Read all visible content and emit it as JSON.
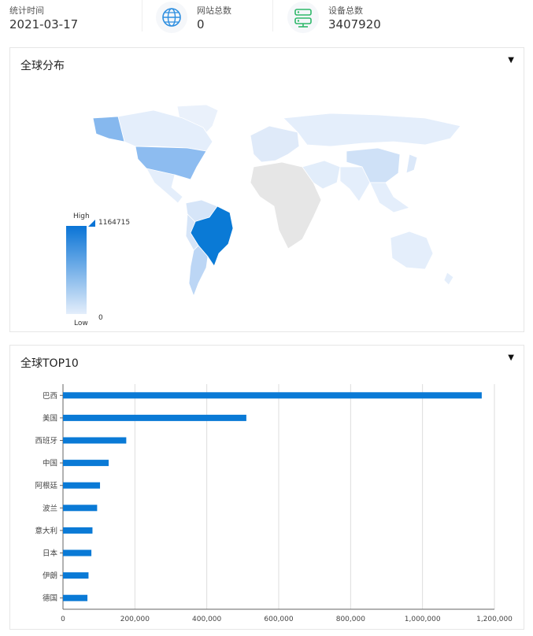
{
  "stats": {
    "date": {
      "label": "统计时间",
      "value": "2021-03-17"
    },
    "websites": {
      "label": "网站总数",
      "value": "0",
      "icon": "globe-icon"
    },
    "devices": {
      "label": "设备总数",
      "value": "3407920",
      "icon": "server-icon"
    }
  },
  "map_card": {
    "title": "全球分布",
    "legend": {
      "high": "High",
      "low": "Low",
      "max_value": "1164715",
      "min_value": "0"
    }
  },
  "top10_card": {
    "title": "全球TOP10"
  },
  "chart_data": {
    "type": "bar",
    "orientation": "horizontal",
    "categories": [
      "巴西",
      "美国",
      "西班牙",
      "中国",
      "阿根廷",
      "波兰",
      "意大利",
      "日本",
      "伊朗",
      "德国"
    ],
    "values": [
      1164715,
      510000,
      176000,
      127000,
      103000,
      95000,
      82000,
      79000,
      71000,
      68000
    ],
    "xlim": [
      0,
      1200000
    ],
    "xticks": [
      "0",
      "200,000",
      "400,000",
      "600,000",
      "800,000",
      "1,000,000",
      "1,200,000"
    ],
    "grid": true,
    "bar_color": "#0a7ad6"
  },
  "colors": {
    "accent": "#0a7ad6",
    "map_low": "#e4eefb",
    "map_none": "#e6e6e6"
  }
}
